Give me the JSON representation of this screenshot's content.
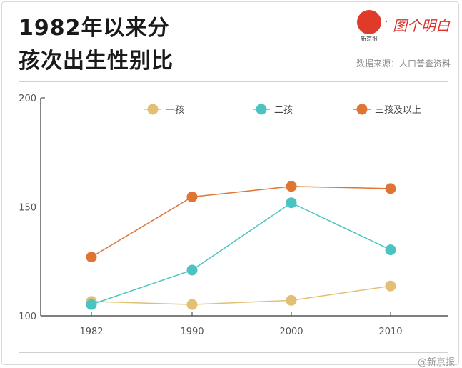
{
  "title_line1": "1982年以来分",
  "title_line2": "孩次出生性别比",
  "logo": {
    "small_text": "新京报",
    "dot": "·",
    "text": "图个明白"
  },
  "source": "数据来源：人口普查资料",
  "watermark": "@新京报",
  "chart_data": {
    "type": "line",
    "categories": [
      "1982",
      "1990",
      "2000",
      "2010"
    ],
    "series": [
      {
        "name": "一孩",
        "color": "#e2bf73",
        "values": [
          106.6,
          105.2,
          107.1,
          113.7
        ]
      },
      {
        "name": "二孩",
        "color": "#4cc3c3",
        "values": [
          105.2,
          121.0,
          151.9,
          130.3
        ]
      },
      {
        "name": "三孩及以上",
        "color": "#de7534",
        "values": [
          127.0,
          154.6,
          159.4,
          158.4
        ]
      }
    ],
    "yticks": [
      "100",
      "150",
      "200"
    ],
    "ylim": [
      100,
      200
    ],
    "grid": false,
    "legend": "top"
  }
}
